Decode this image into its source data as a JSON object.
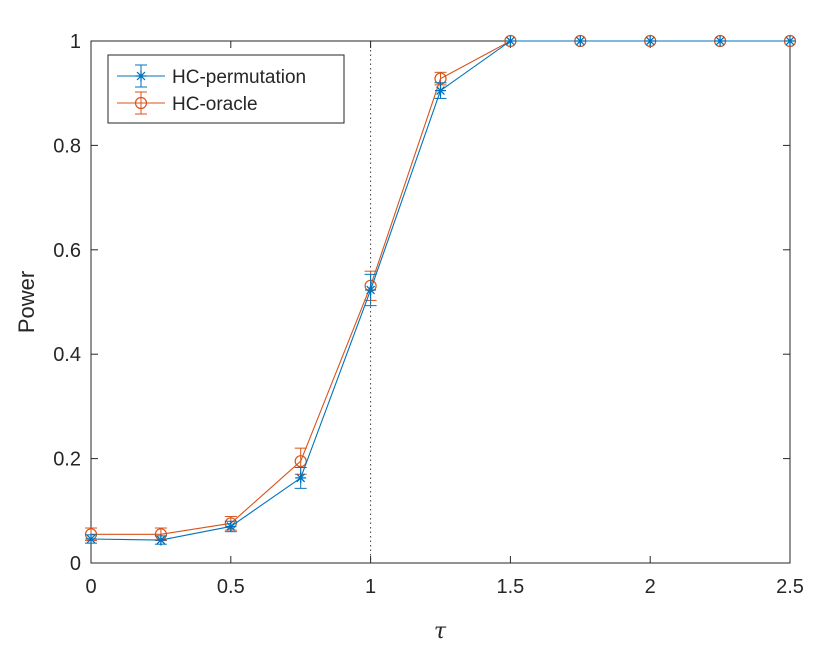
{
  "chart_data": {
    "type": "line",
    "xlabel": "τ",
    "ylabel": "Power",
    "xlim": [
      0,
      2.5
    ],
    "ylim": [
      0,
      1
    ],
    "xticks": [
      "0",
      "0.5",
      "1",
      "1.5",
      "2",
      "2.5"
    ],
    "yticks": [
      "0",
      "0.2",
      "0.4",
      "0.6",
      "0.8",
      "1"
    ],
    "x": [
      0,
      0.25,
      0.5,
      0.75,
      1.0,
      1.25,
      1.5,
      1.75,
      2.0,
      2.25,
      2.5
    ],
    "reference_line": {
      "x": 1,
      "style": "dotted"
    },
    "legend_position": "top-left",
    "series": [
      {
        "name": "HC-permutation",
        "color": "#0072BD",
        "marker": "star",
        "values": [
          0.046,
          0.044,
          0.07,
          0.163,
          0.523,
          0.905,
          1,
          1,
          1,
          1,
          1
        ],
        "errors": [
          0.008,
          0.008,
          0.01,
          0.02,
          0.03,
          0.015,
          0,
          0,
          0,
          0,
          0
        ]
      },
      {
        "name": "HC-oracle",
        "color": "#D95319",
        "marker": "circle",
        "values": [
          0.055,
          0.055,
          0.076,
          0.195,
          0.531,
          0.928,
          1,
          1,
          1,
          1,
          1
        ],
        "errors": [
          0.012,
          0.012,
          0.013,
          0.025,
          0.028,
          0.012,
          0,
          0,
          0,
          0,
          0
        ]
      }
    ]
  }
}
